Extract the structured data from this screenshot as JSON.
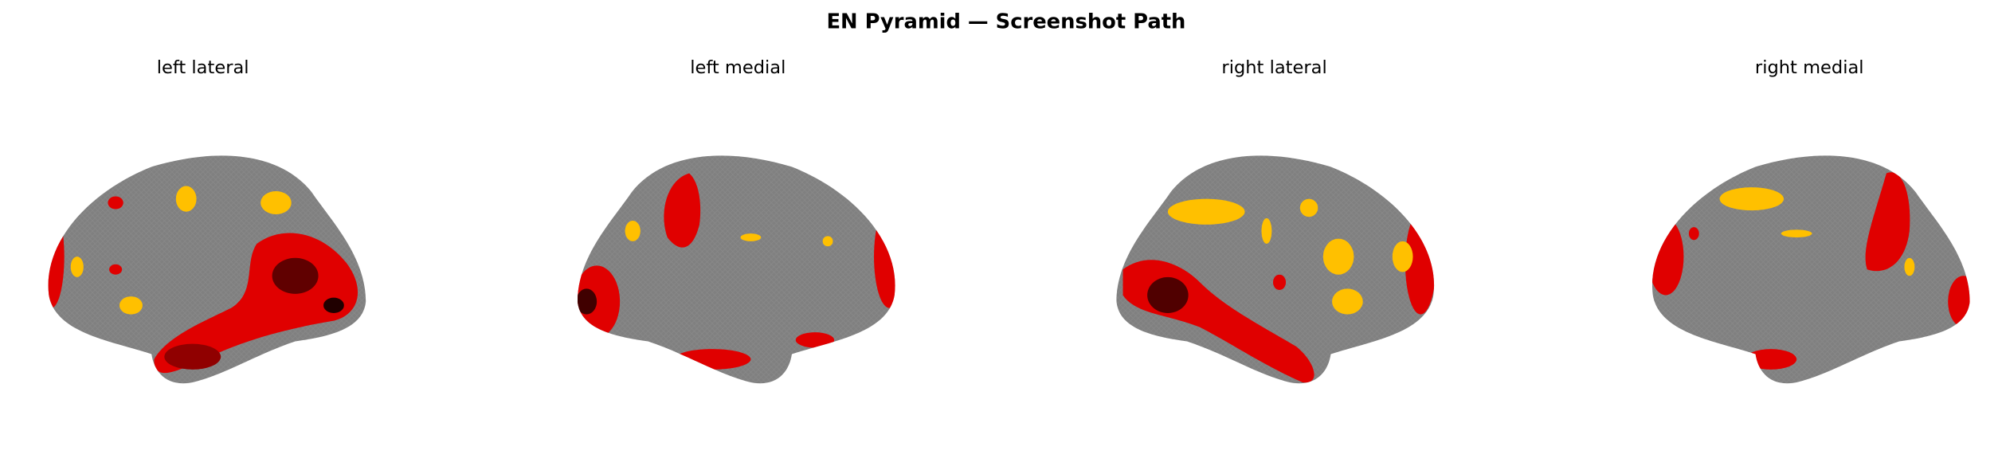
{
  "title": "EN Pyramid — Screenshot Path",
  "panels": [
    {
      "label": "left lateral"
    },
    {
      "label": "left medial"
    },
    {
      "label": "right lateral"
    },
    {
      "label": "right medial"
    }
  ]
}
